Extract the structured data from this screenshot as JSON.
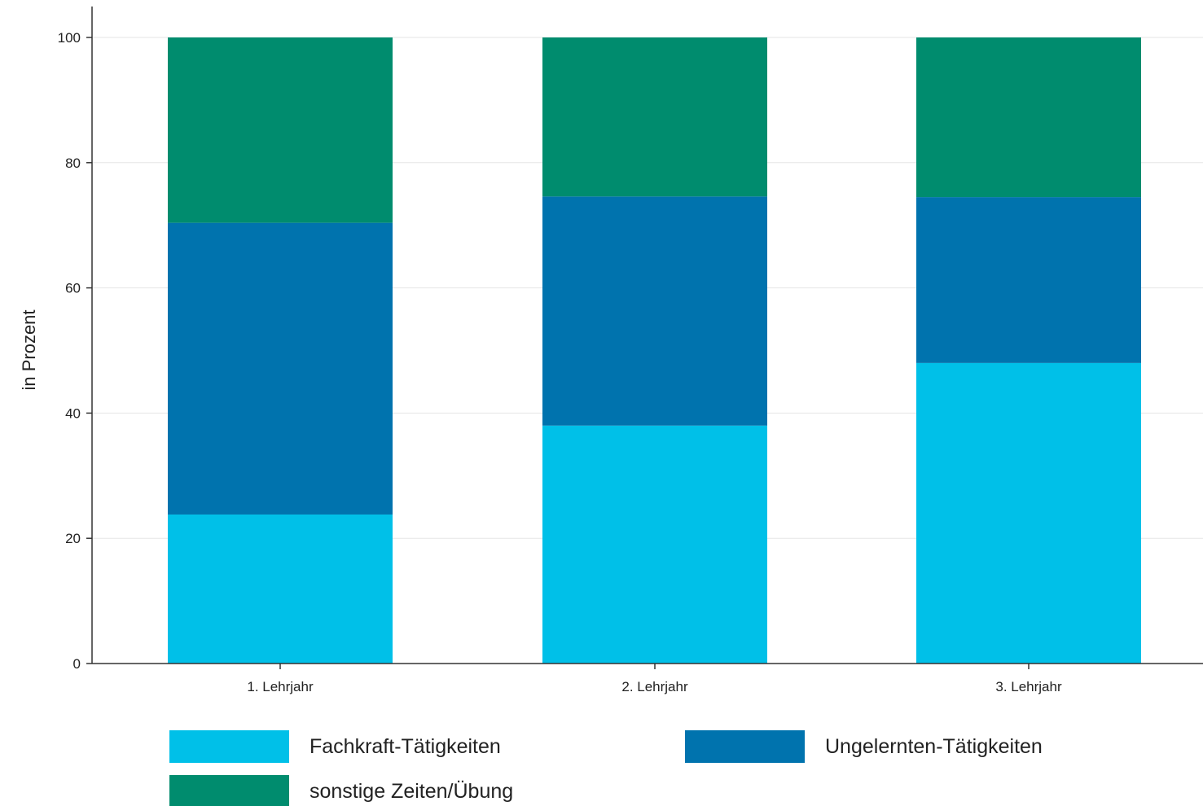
{
  "chart_data": {
    "type": "bar",
    "stacked": true,
    "categories": [
      "1. Lehrjahr",
      "2. Lehrjahr",
      "3. Lehrjahr"
    ],
    "series": [
      {
        "name": "Fachkraft-Tätigkeiten",
        "color": "#00c0e8",
        "values": [
          23.8,
          38.0,
          48.0
        ]
      },
      {
        "name": "Ungelernten-Tätigkeiten",
        "color": "#0073ae",
        "values": [
          46.6,
          36.6,
          26.5
        ]
      },
      {
        "name": "sonstige Zeiten/Übung",
        "color": "#008c6e",
        "values": [
          29.6,
          25.4,
          25.5
        ]
      }
    ],
    "title": "",
    "xlabel": "",
    "ylabel": "in Prozent",
    "ylim": [
      0,
      100
    ],
    "yticks": [
      0,
      20,
      40,
      60,
      80,
      100
    ],
    "grid": true,
    "legend_position": "bottom"
  }
}
